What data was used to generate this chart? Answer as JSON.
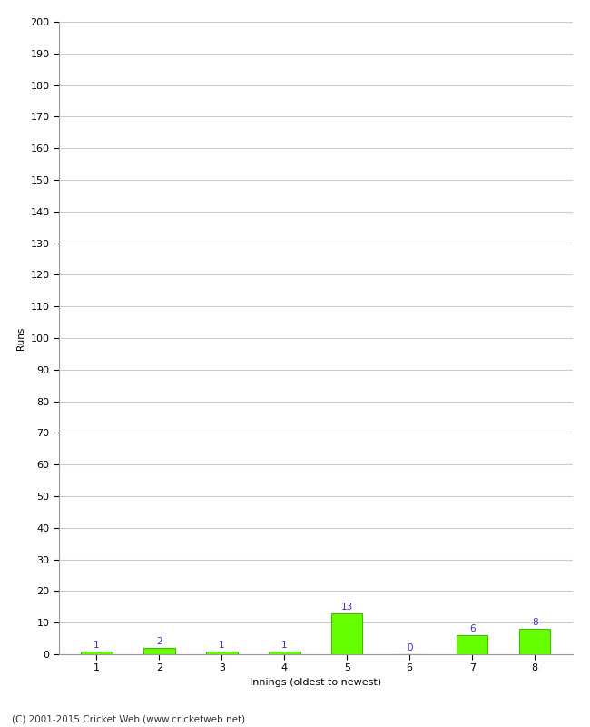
{
  "xlabel": "Innings (oldest to newest)",
  "ylabel": "Runs",
  "categories": [
    1,
    2,
    3,
    4,
    5,
    6,
    7,
    8
  ],
  "values": [
    1,
    2,
    1,
    1,
    13,
    0,
    6,
    8
  ],
  "bar_color": "#66ff00",
  "bar_edge_color": "#44bb00",
  "label_color": "#3333cc",
  "ylim": [
    0,
    200
  ],
  "yticks": [
    0,
    10,
    20,
    30,
    40,
    50,
    60,
    70,
    80,
    90,
    100,
    110,
    120,
    130,
    140,
    150,
    160,
    170,
    180,
    190,
    200
  ],
  "grid_color": "#cccccc",
  "background_color": "#ffffff",
  "footer_text": "(C) 2001-2015 Cricket Web (www.cricketweb.net)",
  "label_fontsize": 7.5,
  "axis_fontsize": 8,
  "footer_fontsize": 7.5,
  "ylabel_fontsize": 7.5
}
